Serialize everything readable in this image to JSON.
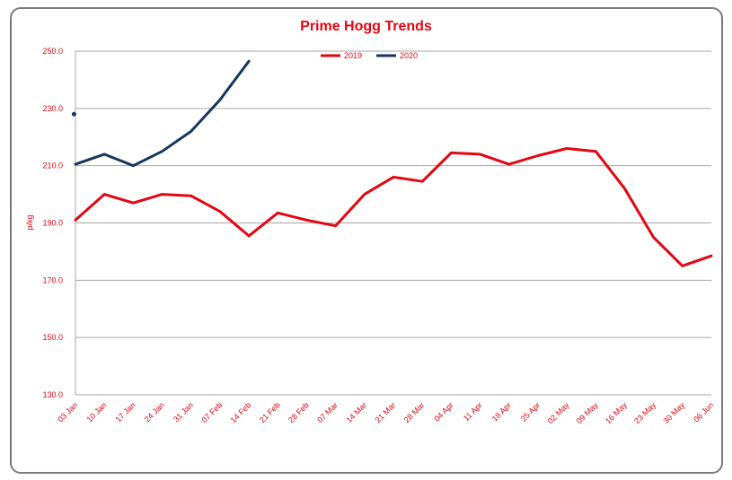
{
  "chart_data": {
    "type": "line",
    "title": "Prime Hogg Trends",
    "xlabel": "",
    "ylabel": "p/kg",
    "ylim": [
      130,
      250
    ],
    "yticks": [
      "130.0",
      "150.0",
      "170.0",
      "190.0",
      "210.0",
      "230.0",
      "250.0"
    ],
    "categories": [
      "03 Jan",
      "10 Jan",
      "17 Jan",
      "24 Jan",
      "31 Jan",
      "07 Feb",
      "14 Feb",
      "21 Feb",
      "28 Feb",
      "07 Mar",
      "14 Mar",
      "21 Mar",
      "28 Mar",
      "04 Apr",
      "11 Apr",
      "18 Apr",
      "25 Apr",
      "02 May",
      "09 May",
      "16 May",
      "23 May",
      "30 May",
      "06 Jun"
    ],
    "series": [
      {
        "name": "2019",
        "color": "#e30613",
        "values": [
          191,
          200,
          197,
          200,
          199.5,
          194,
          185.5,
          193.5,
          191,
          189,
          200,
          206,
          204.5,
          214.5,
          214,
          210.5,
          213.5,
          216,
          215,
          202,
          185,
          175,
          178.5
        ]
      },
      {
        "name": "2020",
        "color": "#17365d",
        "values": [
          210.5,
          214,
          210,
          215,
          222,
          233,
          246.5,
          null,
          null,
          null,
          null,
          null,
          null,
          null,
          null,
          null,
          null,
          null,
          null,
          null,
          null,
          null,
          null
        ]
      }
    ],
    "extra_points": [
      {
        "series": "2020",
        "x_index": -0.05,
        "value": 228
      }
    ],
    "grid": true,
    "legend": "top-center"
  }
}
